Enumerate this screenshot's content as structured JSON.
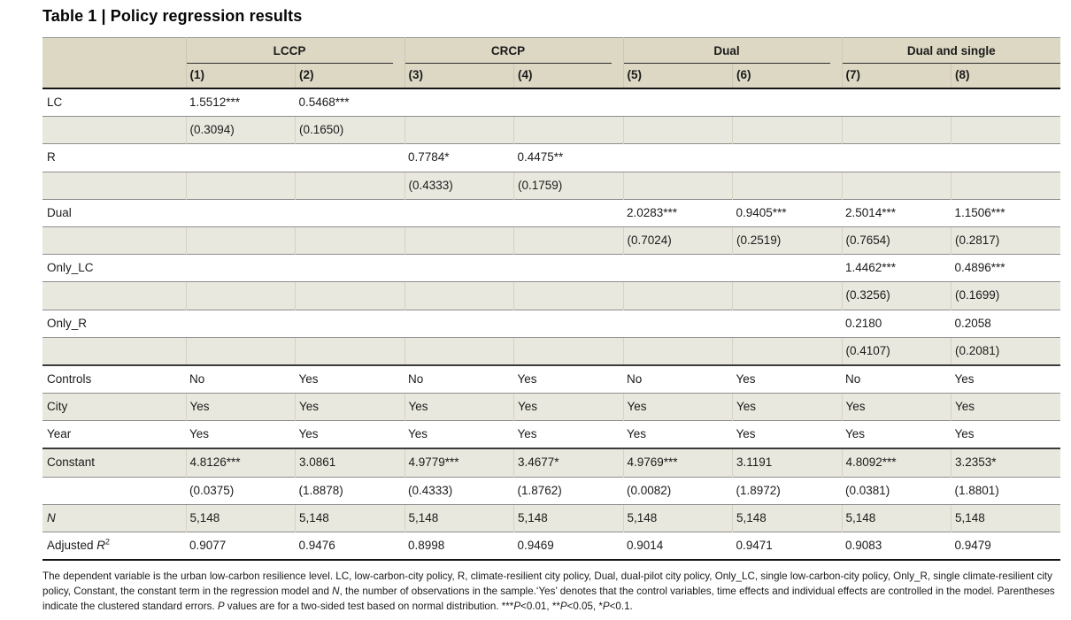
{
  "title": "Table 1 | Policy regression results",
  "colors": {
    "header_bg": "#dcd8c3",
    "row_shade_bg": "#e9e8de",
    "rule_dark": "#141414",
    "rule_gray": "#8e8e8e"
  },
  "table": {
    "groups": [
      {
        "label": "LCCP",
        "columns": [
          "(1)",
          "(2)"
        ]
      },
      {
        "label": "CRCP",
        "columns": [
          "(3)",
          "(4)"
        ]
      },
      {
        "label": "Dual",
        "columns": [
          "(5)",
          "(6)"
        ]
      },
      {
        "label": "Dual and single",
        "columns": [
          "(7)",
          "(8)"
        ]
      }
    ],
    "column_headers": [
      "(1)",
      "(2)",
      "(3)",
      "(4)",
      "(5)",
      "(6)",
      "(7)",
      "(8)"
    ],
    "rows": [
      {
        "label": "LC",
        "cells": [
          "1.5512***",
          "0.5468***",
          "",
          "",
          "",
          "",
          "",
          ""
        ],
        "shaded": false
      },
      {
        "label": "",
        "cells": [
          "(0.3094)",
          "(0.1650)",
          "",
          "",
          "",
          "",
          "",
          ""
        ],
        "shaded": true
      },
      {
        "label": "R",
        "cells": [
          "",
          "",
          "0.7784*",
          "0.4475**",
          "",
          "",
          "",
          ""
        ],
        "shaded": false
      },
      {
        "label": "",
        "cells": [
          "",
          "",
          "(0.4333)",
          "(0.1759)",
          "",
          "",
          "",
          ""
        ],
        "shaded": true
      },
      {
        "label": "Dual",
        "cells": [
          "",
          "",
          "",
          "",
          "2.0283***",
          "0.9405***",
          "2.5014***",
          "1.1506***"
        ],
        "shaded": false
      },
      {
        "label": "",
        "cells": [
          "",
          "",
          "",
          "",
          "(0.7024)",
          "(0.2519)",
          "(0.7654)",
          "(0.2817)"
        ],
        "shaded": true
      },
      {
        "label": "Only_LC",
        "cells": [
          "",
          "",
          "",
          "",
          "",
          "",
          "1.4462***",
          "0.4896***"
        ],
        "shaded": false
      },
      {
        "label": "",
        "cells": [
          "",
          "",
          "",
          "",
          "",
          "",
          "(0.3256)",
          "(0.1699)"
        ],
        "shaded": true
      },
      {
        "label": "Only_R",
        "cells": [
          "",
          "",
          "",
          "",
          "",
          "",
          "0.2180",
          "0.2058"
        ],
        "shaded": false
      },
      {
        "label": "",
        "cells": [
          "",
          "",
          "",
          "",
          "",
          "",
          "(0.4107)",
          "(0.2081)"
        ],
        "shaded": true
      },
      {
        "label": "Controls",
        "cells": [
          "No",
          "Yes",
          "No",
          "Yes",
          "No",
          "Yes",
          "No",
          "Yes"
        ],
        "shaded": false,
        "section": true
      },
      {
        "label": "City",
        "cells": [
          "Yes",
          "Yes",
          "Yes",
          "Yes",
          "Yes",
          "Yes",
          "Yes",
          "Yes"
        ],
        "shaded": true
      },
      {
        "label": "Year",
        "cells": [
          "Yes",
          "Yes",
          "Yes",
          "Yes",
          "Yes",
          "Yes",
          "Yes",
          "Yes"
        ],
        "shaded": false
      },
      {
        "label": "Constant",
        "cells": [
          "4.8126***",
          "3.0861",
          "4.9779***",
          "3.4677*",
          "4.9769***",
          "3.1191",
          "4.8092***",
          "3.2353*"
        ],
        "shaded": true,
        "section": true
      },
      {
        "label": "",
        "cells": [
          "(0.0375)",
          "(1.8878)",
          "(0.4333)",
          "(1.8762)",
          "(0.0082)",
          "(1.8972)",
          "(0.0381)",
          "(1.8801)"
        ],
        "shaded": false
      },
      {
        "label": "N",
        "cells": [
          "5,148",
          "5,148",
          "5,148",
          "5,148",
          "5,148",
          "5,148",
          "5,148",
          "5,148"
        ],
        "shaded": true,
        "math_label": true
      },
      {
        "label": "Adjusted R²",
        "cells": [
          "0.9077",
          "0.9476",
          "0.8998",
          "0.9469",
          "0.9014",
          "0.9471",
          "0.9083",
          "0.9479"
        ],
        "shaded": false,
        "math_label": true
      }
    ],
    "footnote": "The dependent variable is the urban low-carbon resilience level. LC, low-carbon-city policy, R, climate-resilient city policy, Dual, dual-pilot city policy, Only_LC, single low-carbon-city policy, Only_R, single climate-resilient city policy, Constant, the constant term in the regression model and N, the number of observations in the sample.‘Yes’ denotes that the control variables, time effects and individual effects are controlled in the model. Parentheses indicate the clustered standard errors. P values are for a two-sided test based on normal distribution. ***P<0.01, **P<0.05, *P<0.1."
  }
}
